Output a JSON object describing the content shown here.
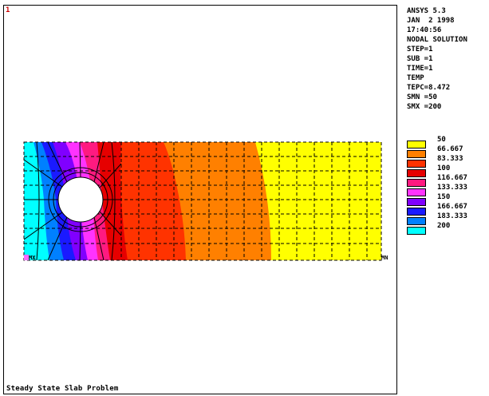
{
  "window": {
    "number": "1",
    "title": "Steady State Slab Problem"
  },
  "info": {
    "lines": [
      "ANSYS 5.3",
      "JAN  2 1998",
      "17:40:56",
      "NODAL SOLUTION",
      "STEP=1",
      "SUB =1",
      "TIME=1",
      "TEMP",
      "TEPC=8.472",
      "SMN =50",
      "SMX =200"
    ]
  },
  "legend": {
    "items": [
      {
        "label": "50",
        "color": "#ffff00"
      },
      {
        "label": "66.667",
        "color": "#ff8000"
      },
      {
        "label": "83.333",
        "color": "#ff3300"
      },
      {
        "label": "100",
        "color": "#e60000"
      },
      {
        "label": "116.667",
        "color": "#ff1a80"
      },
      {
        "label": "133.333",
        "color": "#ff33ff"
      },
      {
        "label": "150",
        "color": "#8000ff"
      },
      {
        "label": "166.667",
        "color": "#1a1aff"
      },
      {
        "label": "183.333",
        "color": "#0080ff"
      },
      {
        "label": "200",
        "color": "#00ffff"
      }
    ]
  },
  "markers": {
    "mx": "MX",
    "mn": "MN"
  }
}
